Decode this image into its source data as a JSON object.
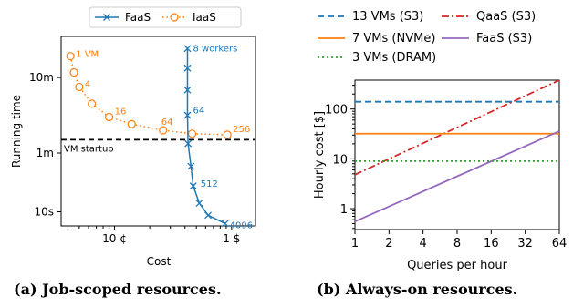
{
  "colors": {
    "faas": "#1f77b4",
    "iaas": "#ff7f0e",
    "orange": "#ff7f0e",
    "blue": "#1f77b4",
    "red": "#d62728",
    "green": "#2ca02c",
    "purple": "#9467bd",
    "black": "#000000"
  },
  "captions": {
    "a": "(a) Job-scoped resources.",
    "b": "(b) Always-on resources."
  },
  "chart_data": [
    {
      "type": "line",
      "xlabel": "Cost",
      "ylabel": "Running time",
      "xscale": "log",
      "yscale": "log",
      "xlim_usd": [
        0.035,
        1.6
      ],
      "ylim_seconds": [
        6.5,
        2100
      ],
      "x_tick_labels": [
        "10 ¢",
        "1 $"
      ],
      "x_tick_values_usd": [
        0.1,
        1.0
      ],
      "y_tick_labels": [
        "10s",
        "1m",
        "10m"
      ],
      "y_tick_values_seconds": [
        10,
        60,
        600
      ],
      "legend": {
        "position": "top",
        "entries": [
          "FaaS",
          "IaaS"
        ]
      },
      "reference_line": {
        "label": "VM startup",
        "y_seconds": 90,
        "style": "dashed"
      },
      "series": [
        {
          "name": "FaaS",
          "marker": "x",
          "style": "solid",
          "points": [
            {
              "x": 0.42,
              "y": 1450,
              "label": "8 workers"
            },
            {
              "x": 0.42,
              "y": 800
            },
            {
              "x": 0.42,
              "y": 410
            },
            {
              "x": 0.42,
              "y": 190,
              "label": "64"
            },
            {
              "x": 0.425,
              "y": 80
            },
            {
              "x": 0.45,
              "y": 40
            },
            {
              "x": 0.47,
              "y": 22,
              "label": "512"
            },
            {
              "x": 0.53,
              "y": 13
            },
            {
              "x": 0.63,
              "y": 9
            },
            {
              "x": 0.88,
              "y": 7,
              "label": "4096"
            }
          ]
        },
        {
          "name": "IaaS",
          "marker": "o",
          "style": "dotted",
          "points": [
            {
              "x": 0.042,
              "y": 1150,
              "label": "1 VM"
            },
            {
              "x": 0.045,
              "y": 700
            },
            {
              "x": 0.05,
              "y": 450,
              "label": "4"
            },
            {
              "x": 0.064,
              "y": 270
            },
            {
              "x": 0.09,
              "y": 180,
              "label": "16"
            },
            {
              "x": 0.14,
              "y": 145
            },
            {
              "x": 0.26,
              "y": 120,
              "label": "64"
            },
            {
              "x": 0.46,
              "y": 108
            },
            {
              "x": 0.92,
              "y": 105,
              "label": "256"
            }
          ]
        }
      ]
    },
    {
      "type": "line",
      "xlabel": "Queries per hour",
      "ylabel": "Hourly cost [$]",
      "xscale": "log2",
      "yscale": "log",
      "xlim": [
        1,
        64
      ],
      "ylim": [
        0.38,
        380
      ],
      "x_tick_labels": [
        "1",
        "2",
        "4",
        "8",
        "16",
        "32",
        "64"
      ],
      "x_tick_values": [
        1,
        2,
        4,
        8,
        16,
        32,
        64
      ],
      "y_tick_labels": [
        "1",
        "10",
        "100"
      ],
      "y_tick_values": [
        1,
        10,
        100
      ],
      "legend": {
        "position": "top",
        "columns": 2
      },
      "series": [
        {
          "name": "13 VMs (S3)",
          "color": "blue",
          "style": "dashed",
          "x": [
            1,
            64
          ],
          "y": [
            140,
            140
          ]
        },
        {
          "name": "QaaS (S3)",
          "color": "red",
          "style": "dashdot",
          "x": [
            1,
            64
          ],
          "y": [
            4.8,
            380
          ]
        },
        {
          "name": "7 VMs (NVMe)",
          "color": "orange",
          "style": "solid",
          "x": [
            1,
            64
          ],
          "y": [
            32,
            32
          ]
        },
        {
          "name": "FaaS (S3)",
          "color": "purple",
          "style": "solid",
          "x": [
            1,
            64
          ],
          "y": [
            0.55,
            36
          ]
        },
        {
          "name": "3 VMs (DRAM)",
          "color": "green",
          "style": "dotted",
          "x": [
            1,
            64
          ],
          "y": [
            9,
            9
          ]
        }
      ]
    }
  ]
}
